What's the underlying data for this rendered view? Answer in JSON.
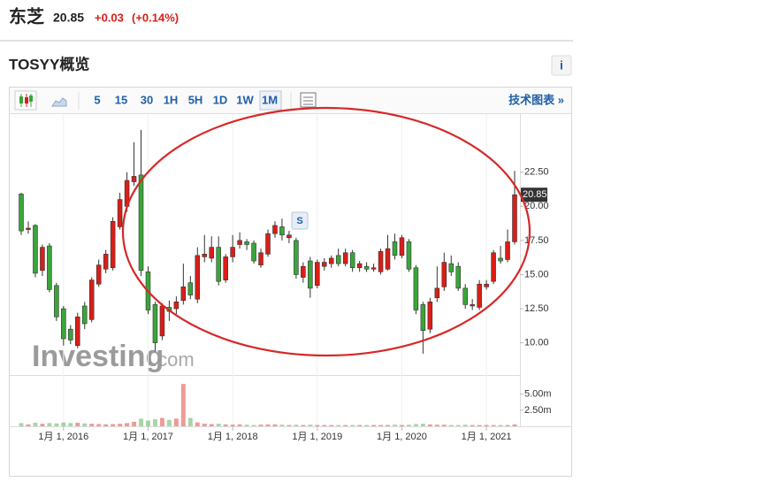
{
  "header": {
    "name": "东芝",
    "price": "20.85",
    "change": "+0.03",
    "change_pct": "(+0.14%)"
  },
  "section": {
    "title": "TOSYY概览",
    "info": "i"
  },
  "toolbar": {
    "intervals": [
      "5",
      "15",
      "30",
      "1H",
      "5H",
      "1D",
      "1W",
      "1M"
    ],
    "link": "技术图表 »"
  },
  "chart_data": {
    "type": "candlestick",
    "watermark": "Investing",
    "watermark_suffix": ".com",
    "annotation": "S",
    "up_color": "#d91e18",
    "down_color": "#3aa53a",
    "open": [
      20.9,
      18.3,
      18.6,
      15.3,
      17.1,
      14.2,
      12.5,
      11.0,
      9.8,
      12.7,
      11.7,
      14.3,
      15.4,
      15.5,
      18.5,
      20.0,
      21.8,
      22.3,
      15.2,
      12.8,
      10.5,
      12.6,
      12.5,
      13.1,
      14.4,
      13.2,
      16.3,
      16.2,
      17.0,
      14.6,
      16.3,
      17.2,
      17.4,
      17.3,
      15.7,
      16.5,
      18.0,
      18.5,
      17.7,
      17.5,
      14.8,
      16.0,
      14.2,
      15.6,
      15.8,
      16.4,
      15.8,
      16.6,
      15.5,
      15.6,
      15.4,
      15.2,
      15.4,
      17.4,
      16.4,
      17.4,
      15.5,
      12.8,
      11.0,
      13.3,
      14.1,
      15.8,
      15.6,
      14.0,
      12.7,
      12.6,
      14.1,
      14.5,
      16.2,
      16.1,
      17.4
    ],
    "high": [
      21.0,
      18.9,
      18.7,
      17.2,
      17.3,
      14.4,
      12.7,
      11.3,
      12.2,
      13.0,
      14.8,
      16.1,
      16.8,
      19.2,
      21.0,
      22.5,
      24.7,
      25.6,
      15.6,
      13.0,
      12.9,
      13.1,
      13.4,
      15.8,
      14.9,
      17.0,
      17.9,
      17.8,
      17.8,
      16.5,
      17.9,
      18.1,
      17.6,
      17.5,
      16.9,
      18.3,
      18.9,
      19.1,
      18.2,
      17.7,
      15.9,
      16.3,
      16.1,
      16.2,
      16.4,
      16.9,
      16.9,
      16.8,
      16.0,
      15.9,
      15.8,
      16.9,
      17.9,
      18.0,
      17.9,
      17.6,
      15.7,
      13.0,
      13.3,
      15.6,
      16.6,
      16.4,
      15.9,
      14.3,
      13.2,
      14.6,
      14.6,
      16.8,
      17.1,
      18.3,
      22.6
    ],
    "low": [
      17.9,
      18.0,
      14.8,
      14.9,
      13.7,
      11.6,
      9.8,
      9.9,
      9.6,
      11.0,
      11.5,
      14.1,
      15.1,
      15.3,
      18.3,
      19.6,
      21.5,
      14.9,
      12.1,
      9.4,
      10.2,
      11.6,
      12.1,
      12.8,
      13.2,
      12.9,
      15.9,
      15.9,
      14.2,
      14.4,
      15.9,
      16.9,
      16.8,
      15.8,
      15.5,
      16.3,
      17.7,
      17.5,
      17.3,
      14.7,
      14.4,
      13.3,
      14.0,
      15.3,
      15.5,
      15.6,
      15.6,
      15.2,
      15.2,
      15.2,
      15.2,
      15.0,
      15.3,
      16.1,
      16.2,
      15.2,
      12.1,
      9.2,
      10.7,
      13.0,
      13.8,
      14.9,
      13.8,
      12.5,
      12.4,
      12.4,
      13.9,
      14.3,
      15.8,
      15.9,
      17.2
    ],
    "close": [
      18.2,
      18.4,
      15.1,
      17.0,
      13.9,
      11.9,
      10.3,
      10.2,
      11.9,
      11.4,
      14.6,
      15.7,
      16.5,
      18.9,
      20.5,
      21.9,
      22.2,
      15.3,
      12.4,
      10.0,
      12.7,
      12.3,
      13.0,
      14.1,
      13.5,
      16.4,
      16.5,
      17.0,
      14.5,
      16.3,
      17.0,
      17.5,
      17.2,
      16.0,
      16.6,
      18.0,
      18.6,
      17.9,
      17.9,
      15.0,
      15.6,
      14.0,
      15.9,
      15.9,
      16.2,
      15.8,
      16.6,
      15.5,
      15.8,
      15.4,
      15.5,
      16.7,
      16.9,
      16.4,
      17.7,
      15.4,
      12.4,
      10.9,
      13.0,
      14.0,
      15.9,
      15.2,
      14.0,
      12.8,
      12.8,
      14.3,
      14.3,
      16.6,
      16.0,
      17.4,
      20.85
    ],
    "volume": [
      500000,
      300000,
      550000,
      400000,
      500000,
      450000,
      600000,
      500000,
      550000,
      450000,
      400000,
      350000,
      300000,
      350000,
      400000,
      500000,
      700000,
      1200000,
      900000,
      1100000,
      1300000,
      1000000,
      1200000,
      6600000,
      1300000,
      600000,
      400000,
      350000,
      400000,
      300000,
      250000,
      300000,
      250000,
      200000,
      250000,
      300000,
      300000,
      250000,
      200000,
      250000,
      200000,
      250000,
      200000,
      200000,
      200000,
      200000,
      200000,
      200000,
      200000,
      200000,
      200000,
      200000,
      200000,
      250000,
      200000,
      250000,
      350000,
      400000,
      300000,
      250000,
      250000,
      200000,
      200000,
      250000,
      200000,
      200000,
      200000,
      200000,
      200000,
      200000,
      300000
    ],
    "ylim": [
      7.9,
      25.4
    ],
    "yticks": [
      {
        "value": 10,
        "label": "10.00"
      },
      {
        "value": 12.5,
        "label": "12.50"
      },
      {
        "value": 15,
        "label": "15.00"
      },
      {
        "value": 17.5,
        "label": "17.50"
      },
      {
        "value": 20,
        "label": "20.00"
      },
      {
        "value": 22.5,
        "label": "22.50"
      }
    ],
    "vlim": [
      0,
      8000000
    ],
    "vticks": [
      {
        "value": 2500000,
        "label": "2.50m"
      },
      {
        "value": 5000000,
        "label": "5.00m"
      }
    ],
    "xticks": [
      {
        "value": 6,
        "label": "1月 1, 2016"
      },
      {
        "value": 18,
        "label": "1月 1, 2017"
      },
      {
        "value": 30,
        "label": "1月 1, 2018"
      },
      {
        "value": 42,
        "label": "1月 1, 2019"
      },
      {
        "value": 54,
        "label": "1月 1, 2020"
      },
      {
        "value": 66,
        "label": "1月 1, 2021"
      }
    ]
  }
}
